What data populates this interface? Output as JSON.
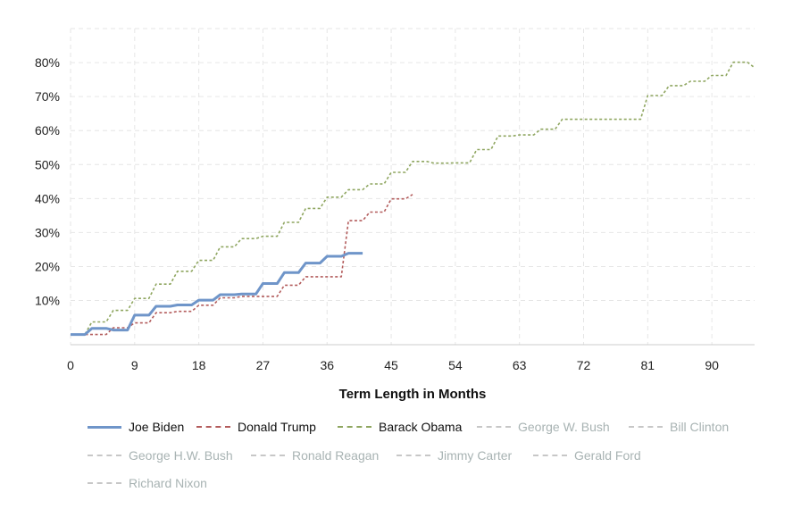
{
  "chart_data": {
    "type": "line",
    "xlabel": "Term Length in Months",
    "ylabel": "",
    "xlim": [
      0,
      96
    ],
    "ylim": [
      -3,
      90
    ],
    "x_ticks": [
      0,
      9,
      18,
      27,
      36,
      45,
      54,
      63,
      72,
      81,
      90
    ],
    "y_ticks": [
      10,
      20,
      30,
      40,
      50,
      60,
      70,
      80
    ],
    "y_tick_labels": [
      "10%",
      "20%",
      "30%",
      "40%",
      "50%",
      "60%",
      "70%",
      "80%"
    ],
    "grid": true,
    "legend_position": "bottom",
    "series": [
      {
        "name": "Joe Biden",
        "color": "#6f95c9",
        "style": "solid",
        "active": true,
        "x": [
          0,
          2,
          3,
          5,
          6,
          8,
          9,
          11,
          12,
          14,
          15,
          17,
          18,
          20,
          21,
          23,
          24,
          26,
          27,
          29,
          30,
          32,
          33,
          35,
          36,
          38,
          39,
          41
        ],
        "y": [
          0,
          0,
          1.8,
          1.8,
          1.3,
          1.3,
          5.7,
          5.7,
          8.3,
          8.3,
          8.7,
          8.7,
          10.1,
          10.1,
          11.7,
          11.7,
          11.9,
          11.9,
          15,
          15,
          18.2,
          18.2,
          21,
          21,
          23,
          23,
          23.9,
          23.9
        ]
      },
      {
        "name": "Donald Trump",
        "color": "#b35c5c",
        "style": "dashed",
        "active": true,
        "x": [
          0,
          5,
          6,
          8,
          9,
          11,
          12,
          14,
          15,
          17,
          18,
          20,
          21,
          23,
          24,
          26,
          27,
          29,
          30,
          32,
          33,
          35,
          36,
          38,
          39,
          41,
          42,
          44,
          45,
          47,
          48
        ],
        "y": [
          0,
          0,
          2,
          2,
          3.4,
          3.4,
          6.4,
          6.4,
          6.8,
          6.8,
          8.6,
          8.6,
          10.8,
          10.8,
          11.2,
          11.2,
          11.2,
          11.2,
          14.5,
          14.5,
          17,
          17,
          17,
          17,
          33.5,
          33.5,
          36,
          36,
          39.9,
          39.9,
          41.2
        ]
      },
      {
        "name": "Barack Obama",
        "color": "#8fa660",
        "style": "dashed",
        "active": true,
        "x": [
          0,
          2,
          3,
          5,
          6,
          8,
          9,
          11,
          12,
          14,
          15,
          17,
          18,
          20,
          21,
          23,
          24,
          26,
          27,
          29,
          30,
          32,
          33,
          35,
          36,
          38,
          39,
          41,
          42,
          44,
          45,
          47,
          48,
          50,
          51,
          53,
          54,
          56,
          57,
          59,
          60,
          62,
          63,
          65,
          66,
          68,
          69,
          71,
          72,
          74,
          75,
          77,
          78,
          80,
          81,
          83,
          84,
          86,
          87,
          89,
          90,
          92,
          93,
          95,
          96
        ],
        "y": [
          0,
          0,
          3.7,
          3.7,
          7.1,
          7.1,
          10.6,
          10.6,
          14.8,
          14.8,
          18.6,
          18.6,
          21.8,
          21.8,
          25.8,
          25.8,
          28.2,
          28.2,
          28.9,
          28.9,
          33,
          33,
          37.1,
          37.1,
          40.4,
          40.4,
          42.6,
          42.6,
          44.3,
          44.3,
          47.7,
          47.7,
          50.9,
          50.9,
          50.4,
          50.4,
          50.5,
          50.5,
          54.4,
          54.4,
          58.4,
          58.4,
          58.7,
          58.7,
          60.4,
          60.4,
          63.3,
          63.3,
          63.3,
          63.3,
          63.3,
          63.3,
          63.3,
          63.3,
          70.3,
          70.3,
          73.2,
          73.2,
          74.5,
          74.5,
          76.2,
          76.2,
          80.1,
          80.1,
          78.5
        ]
      },
      {
        "name": "George W. Bush",
        "color": "#c7c7c7",
        "style": "dashed",
        "active": false,
        "x": [],
        "y": []
      },
      {
        "name": "Bill Clinton",
        "color": "#c7c7c7",
        "style": "dashed",
        "active": false,
        "x": [],
        "y": []
      },
      {
        "name": "George H.W. Bush",
        "color": "#c7c7c7",
        "style": "dashed",
        "active": false,
        "x": [],
        "y": []
      },
      {
        "name": "Ronald Reagan",
        "color": "#c7c7c7",
        "style": "dashed",
        "active": false,
        "x": [],
        "y": []
      },
      {
        "name": "Jimmy Carter",
        "color": "#c7c7c7",
        "style": "dashed",
        "active": false,
        "x": [],
        "y": []
      },
      {
        "name": "Gerald Ford",
        "color": "#c7c7c7",
        "style": "dashed",
        "active": false,
        "x": [],
        "y": []
      },
      {
        "name": "Richard Nixon",
        "color": "#c7c7c7",
        "style": "dashed",
        "active": false,
        "x": [],
        "y": []
      }
    ]
  },
  "colors": {
    "inactive_text": "#a8b3b3",
    "active_text": "#111111",
    "grid": "#e6e6e6"
  }
}
